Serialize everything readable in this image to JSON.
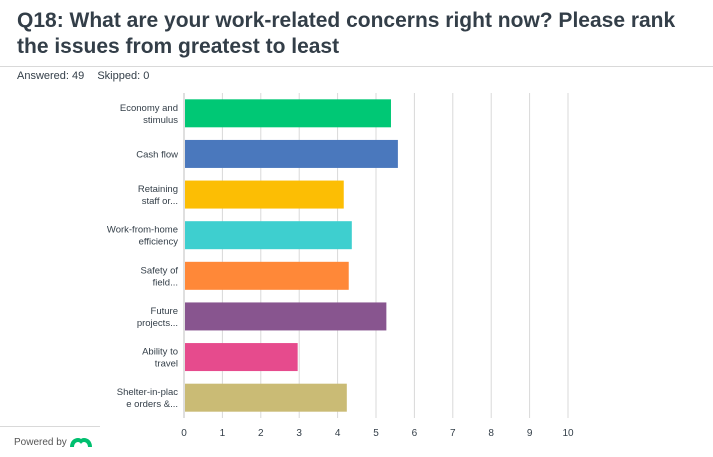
{
  "header": {
    "title": "Q18: What are your work-related concerns right now? Please rank the issues from greatest to least",
    "answered": "Answered: 49",
    "skipped": "Skipped: 0"
  },
  "footer": {
    "powered_by": "Powered by"
  },
  "chart_data": {
    "type": "bar",
    "orientation": "horizontal",
    "categories": [
      [
        "Economy and",
        "stimulus"
      ],
      [
        "Cash flow"
      ],
      [
        "Retaining",
        "staff or..."
      ],
      [
        "Work-from-home",
        "efficiency"
      ],
      [
        "Safety of",
        "field..."
      ],
      [
        "Future",
        "projects..."
      ],
      [
        "Ability to",
        "travel"
      ],
      [
        "Shelter-in-plac",
        "e orders &..."
      ]
    ],
    "values": [
      5.39,
      5.57,
      4.16,
      4.37,
      4.29,
      5.27,
      2.96,
      4.24
    ],
    "colors": [
      "#00c875",
      "#4a78bd",
      "#fcbe04",
      "#3ecfcf",
      "#ff8838",
      "#88558f",
      "#e64b8d",
      "#cabb75"
    ],
    "xlim": [
      0,
      10
    ],
    "xticks": [
      0,
      1,
      2,
      3,
      4,
      5,
      6,
      7,
      8,
      9,
      10
    ],
    "grid": true
  }
}
